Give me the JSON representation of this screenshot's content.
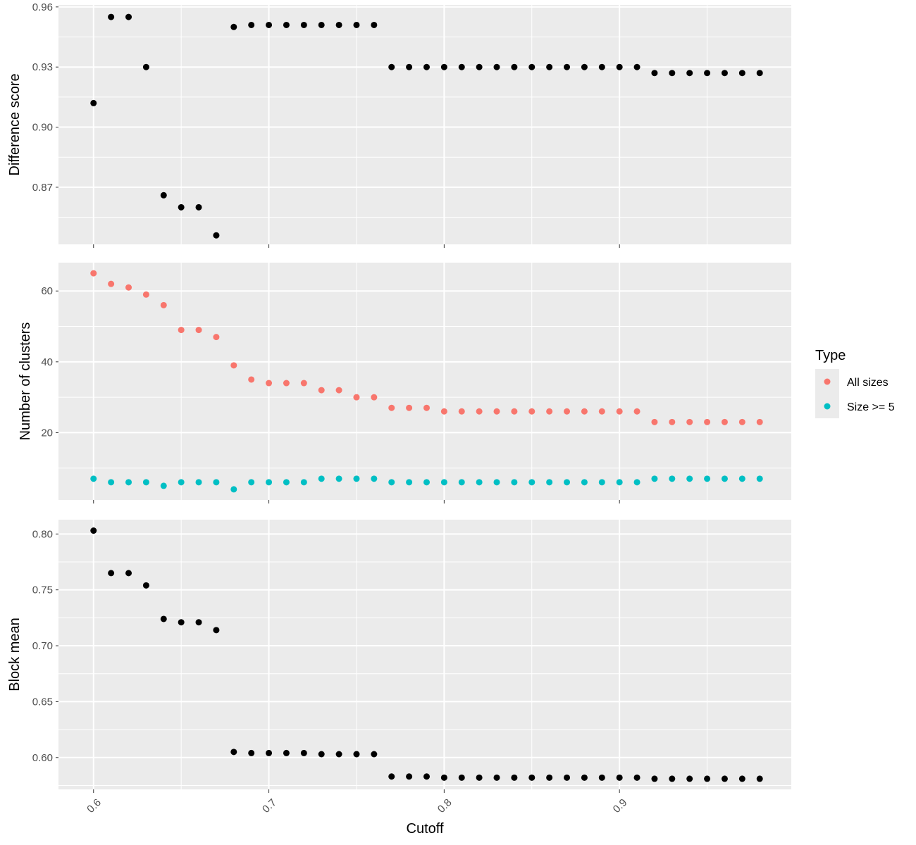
{
  "chart_data": {
    "type": "scatter",
    "xlabel": "Cutoff",
    "x_ticks": [
      "0.6",
      "0.7",
      "0.8",
      "0.9"
    ],
    "x_tick_values": [
      0.6,
      0.7,
      0.8,
      0.9
    ],
    "xlim": [
      0.58,
      0.998
    ],
    "x": [
      0.6,
      0.61,
      0.62,
      0.63,
      0.64,
      0.65,
      0.66,
      0.67,
      0.68,
      0.69,
      0.7,
      0.71,
      0.72,
      0.73,
      0.74,
      0.75,
      0.76,
      0.77,
      0.78,
      0.79,
      0.8,
      0.81,
      0.82,
      0.83,
      0.84,
      0.85,
      0.86,
      0.87,
      0.88,
      0.89,
      0.9,
      0.91,
      0.92,
      0.93,
      0.94,
      0.95,
      0.96,
      0.97,
      0.98
    ],
    "panels": [
      {
        "ylabel": "Difference score",
        "ylim": [
          0.8415,
          0.961
        ],
        "y_ticks": [
          "0.96",
          "0.93",
          "0.90",
          "0.87"
        ],
        "y_tick_values": [
          0.96,
          0.93,
          0.9,
          0.87
        ],
        "series": [
          {
            "color": "#000000",
            "values": [
              0.912,
              0.955,
              0.955,
              0.93,
              0.866,
              0.86,
              0.86,
              0.846,
              0.95,
              0.951,
              0.951,
              0.951,
              0.951,
              0.951,
              0.951,
              0.951,
              0.951,
              0.93,
              0.93,
              0.93,
              0.93,
              0.93,
              0.93,
              0.93,
              0.93,
              0.93,
              0.93,
              0.93,
              0.93,
              0.93,
              0.93,
              0.93,
              0.927,
              0.927,
              0.927,
              0.927,
              0.927,
              0.927,
              0.927
            ]
          }
        ]
      },
      {
        "ylabel": "Number of clusters",
        "ylim": [
          1.0,
          68.0
        ],
        "y_ticks": [
          "60",
          "40",
          "20"
        ],
        "y_tick_values": [
          60,
          40,
          20
        ],
        "series": [
          {
            "name": "All sizes",
            "color": "#f8766d",
            "values": [
              65,
              62,
              61,
              59,
              56,
              49,
              49,
              47,
              39,
              35,
              34,
              34,
              34,
              32,
              32,
              30,
              30,
              27,
              27,
              27,
              26,
              26,
              26,
              26,
              26,
              26,
              26,
              26,
              26,
              26,
              26,
              26,
              23,
              23,
              23,
              23,
              23,
              23,
              23
            ]
          },
          {
            "name": "Size >= 5",
            "color": "#00bfc4",
            "values": [
              7,
              6,
              6,
              6,
              5,
              6,
              6,
              6,
              4,
              6,
              6,
              6,
              6,
              7,
              7,
              7,
              7,
              6,
              6,
              6,
              6,
              6,
              6,
              6,
              6,
              6,
              6,
              6,
              6,
              6,
              6,
              6,
              7,
              7,
              7,
              7,
              7,
              7,
              7
            ]
          }
        ]
      },
      {
        "ylabel": "Block mean",
        "ylim": [
          0.5715,
          0.8128
        ],
        "y_ticks": [
          "0.80",
          "0.75",
          "0.70",
          "0.65",
          "0.60"
        ],
        "y_tick_values": [
          0.8,
          0.75,
          0.7,
          0.65,
          0.6
        ],
        "series": [
          {
            "color": "#000000",
            "values": [
              0.803,
              0.765,
              0.765,
              0.754,
              0.724,
              0.721,
              0.721,
              0.714,
              0.605,
              0.604,
              0.604,
              0.604,
              0.604,
              0.603,
              0.603,
              0.603,
              0.603,
              0.583,
              0.583,
              0.583,
              0.582,
              0.582,
              0.582,
              0.582,
              0.582,
              0.582,
              0.582,
              0.582,
              0.582,
              0.582,
              0.582,
              0.582,
              0.581,
              0.581,
              0.581,
              0.581,
              0.581,
              0.581,
              0.581
            ]
          }
        ]
      }
    ],
    "legend": {
      "title": "Type",
      "position": "right",
      "entries": [
        {
          "label": "All sizes",
          "color": "#f8766d"
        },
        {
          "label": "Size >= 5",
          "color": "#00bfc4"
        }
      ]
    },
    "grid": true,
    "panel_background": "#ebebeb"
  }
}
